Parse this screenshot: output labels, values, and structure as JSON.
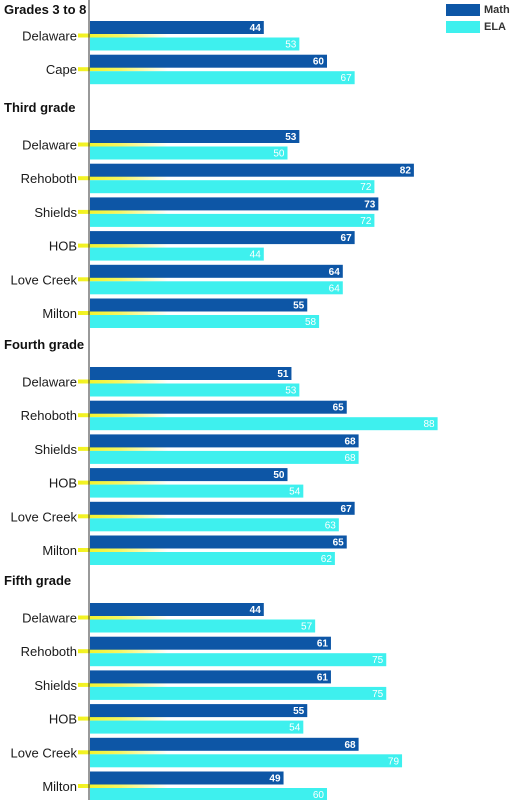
{
  "chart_data": {
    "type": "bar",
    "orientation": "horizontal",
    "colors": {
      "Math": "#0d56a6",
      "ELA": "#3ef0ee",
      "leader": "#f2f21a"
    },
    "legend": {
      "position": "top-right",
      "entries": [
        {
          "name": "Math",
          "color": "#0d56a6"
        },
        {
          "name": "ELA",
          "color": "#3ef0ee"
        }
      ]
    },
    "xlim": [
      0,
      100
    ],
    "grid": false,
    "groups": [
      {
        "title": "Grades 3 to 8",
        "rows": [
          {
            "label": "Delaware",
            "math": 44,
            "ela": 53
          },
          {
            "label": "Cape",
            "math": 60,
            "ela": 67
          }
        ]
      },
      {
        "title": "Third grade",
        "rows": [
          {
            "label": "Delaware",
            "math": 53,
            "ela": 50
          },
          {
            "label": "Rehoboth",
            "math": 82,
            "ela": 72
          },
          {
            "label": "Shields",
            "math": 73,
            "ela": 72
          },
          {
            "label": "HOB",
            "math": 67,
            "ela": 44
          },
          {
            "label": "Love Creek",
            "math": 64,
            "ela": 64
          },
          {
            "label": "Milton",
            "math": 55,
            "ela": 58
          }
        ]
      },
      {
        "title": "Fourth grade",
        "rows": [
          {
            "label": "Delaware",
            "math": 51,
            "ela": 53
          },
          {
            "label": "Rehoboth",
            "math": 65,
            "ela": 88
          },
          {
            "label": "Shields",
            "math": 68,
            "ela": 68
          },
          {
            "label": "HOB",
            "math": 50,
            "ela": 54
          },
          {
            "label": "Love Creek",
            "math": 67,
            "ela": 63
          },
          {
            "label": "Milton",
            "math": 65,
            "ela": 62
          }
        ]
      },
      {
        "title": "Fifth grade",
        "rows": [
          {
            "label": "Delaware",
            "math": 44,
            "ela": 57
          },
          {
            "label": "Rehoboth",
            "math": 61,
            "ela": 75
          },
          {
            "label": "Shields",
            "math": 61,
            "ela": 75
          },
          {
            "label": "HOB",
            "math": 55,
            "ela": 54
          },
          {
            "label": "Love Creek",
            "math": 68,
            "ela": 79
          },
          {
            "label": "Milton",
            "math": 49,
            "ela": 60
          }
        ]
      }
    ]
  }
}
